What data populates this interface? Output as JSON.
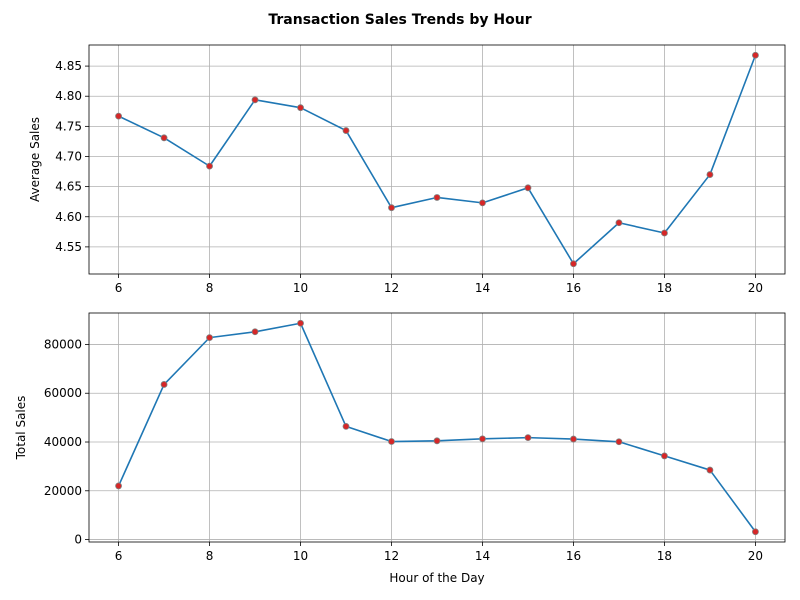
{
  "figure": {
    "title": "Transaction Sales Trends by Hour"
  },
  "colors": {
    "line": "#1f77b4",
    "marker_fill": "#d62728",
    "marker_edge": "#808080",
    "grid": "#b0b0b0",
    "axes": "#000000",
    "background": "#ffffff"
  },
  "chart_data": [
    {
      "type": "line",
      "name": "average",
      "title": "",
      "xlabel": "",
      "ylabel": "Average Sales",
      "x": [
        6,
        7,
        8,
        9,
        10,
        11,
        12,
        13,
        14,
        15,
        16,
        17,
        18,
        19,
        20
      ],
      "values": [
        4.767,
        4.731,
        4.684,
        4.794,
        4.781,
        4.743,
        4.615,
        4.632,
        4.623,
        4.648,
        4.522,
        4.59,
        4.573,
        4.67,
        4.868
      ],
      "xlim": [
        5.35,
        20.65
      ],
      "ylim": [
        4.505,
        4.885
      ],
      "xticks": [
        6,
        8,
        10,
        12,
        14,
        16,
        18,
        20
      ],
      "xtick_labels": [
        "6",
        "8",
        "10",
        "12",
        "14",
        "16",
        "18",
        "20"
      ],
      "yticks": [
        4.55,
        4.6,
        4.65,
        4.7,
        4.75,
        4.8,
        4.85
      ],
      "ytick_labels": [
        "4.55",
        "4.60",
        "4.65",
        "4.70",
        "4.75",
        "4.80",
        "4.85"
      ],
      "grid": true,
      "markers": true
    },
    {
      "type": "line",
      "name": "total",
      "title": "",
      "xlabel": "Hour of the Day",
      "ylabel": "Total Sales",
      "x": [
        6,
        7,
        8,
        9,
        10,
        11,
        12,
        13,
        14,
        15,
        16,
        17,
        18,
        19,
        20
      ],
      "values": [
        22000,
        63600,
        82800,
        85200,
        88700,
        46400,
        40200,
        40500,
        41300,
        41800,
        41200,
        40100,
        34300,
        28500,
        3200
      ],
      "xlim": [
        5.35,
        20.65
      ],
      "ylim": [
        -1000,
        92900
      ],
      "xticks": [
        6,
        8,
        10,
        12,
        14,
        16,
        18,
        20
      ],
      "xtick_labels": [
        "6",
        "8",
        "10",
        "12",
        "14",
        "16",
        "18",
        "20"
      ],
      "yticks": [
        0,
        20000,
        40000,
        60000,
        80000
      ],
      "ytick_labels": [
        "0",
        "20000",
        "40000",
        "60000",
        "80000"
      ],
      "grid": true,
      "markers": true
    }
  ]
}
